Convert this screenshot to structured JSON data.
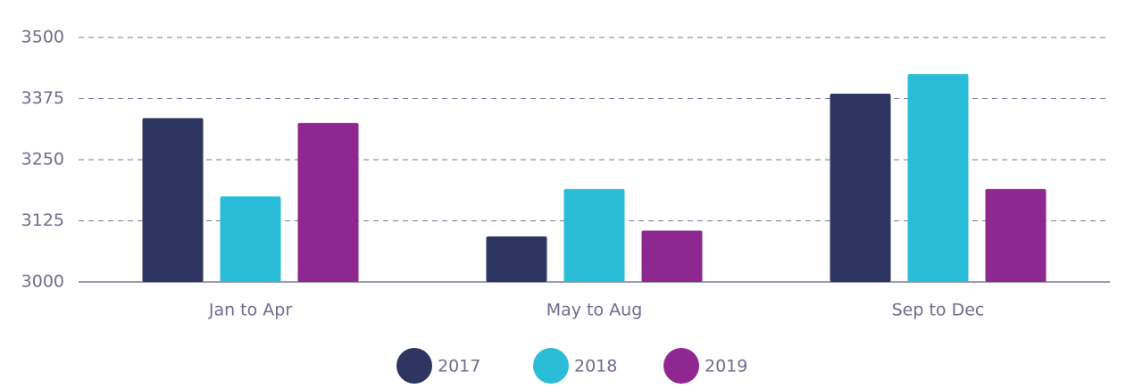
{
  "chart_data": {
    "type": "bar",
    "categories": [
      "Jan to Apr",
      "May to Aug",
      "Sep to Dec"
    ],
    "series": [
      {
        "name": "2017",
        "color": "#2e3561",
        "values": [
          3335,
          3093,
          3385
        ]
      },
      {
        "name": "2018",
        "color": "#2bbdd8",
        "values": [
          3175,
          3190,
          3425
        ]
      },
      {
        "name": "2019",
        "color": "#8e278f",
        "values": [
          3325,
          3105,
          3190
        ]
      }
    ],
    "ylim": [
      3000,
      3500
    ],
    "yticks": [
      3000,
      3125,
      3250,
      3375,
      3500
    ],
    "grid": true,
    "legend": "bottom"
  }
}
